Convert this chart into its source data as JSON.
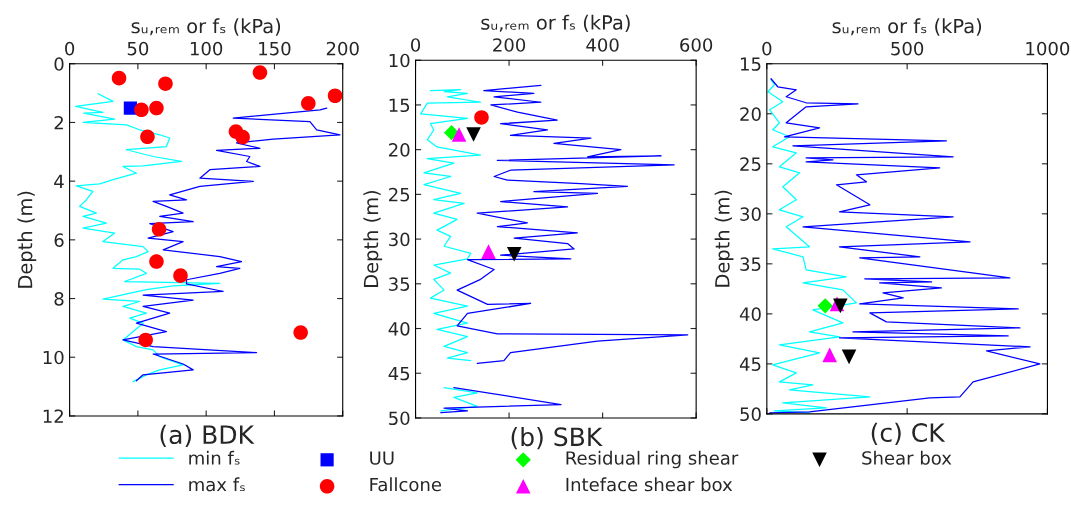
{
  "chart_data": [
    {
      "type": "line",
      "title": "(a) BDK",
      "xlabel": "sᵤ,ᵣₑₘ or fₛ (kPa)",
      "ylabel": "Depth (m)",
      "xlim": [
        0,
        200
      ],
      "xticks": [
        0,
        50,
        100,
        150,
        200
      ],
      "ylim": [
        12,
        0
      ],
      "yticks": [
        0,
        2,
        4,
        6,
        8,
        10,
        12
      ],
      "legend": "bottom",
      "series": [
        {
          "name": "min fₛ",
          "color": "#00ffff",
          "x": [
            20.8,
            31.8,
            4.4,
            24.4,
            10.3,
            33.0,
            9.8,
            41.6,
            51.3,
            66.0,
            73.3,
            70.9,
            41.6,
            61.1,
            81.9,
            53.8,
            39.1,
            48.9,
            31.8,
            22.0,
            4.9,
            17.1,
            12.2,
            7.3,
            19.6,
            9.8,
            26.9,
            9.8,
            33.0,
            24.4,
            53.8,
            57.5,
            48.9,
            39.1,
            31.8,
            51.3,
            56.2,
            40.3,
            110.0,
            75.8,
            56.2,
            24.4,
            51.3,
            39.1,
            56.2,
            44.0,
            53.8,
            39.1,
            48.9,
            61.1,
            66.0,
            83.1,
            66.0,
            56.2,
            46.5
          ],
          "values": [
            1.02,
            1.28,
            1.45,
            1.66,
            1.68,
            1.89,
            2.0,
            2.08,
            2.25,
            2.42,
            2.53,
            2.82,
            2.93,
            3.16,
            3.33,
            3.48,
            3.5,
            3.73,
            3.95,
            4.09,
            4.16,
            4.35,
            4.64,
            4.86,
            5.09,
            5.2,
            5.43,
            5.6,
            5.77,
            6.06,
            6.23,
            6.4,
            6.57,
            6.68,
            6.97,
            7.0,
            7.14,
            7.42,
            7.48,
            7.57,
            7.7,
            8.02,
            8.1,
            8.27,
            8.5,
            8.67,
            8.84,
            9.41,
            9.64,
            9.75,
            9.98,
            10.26,
            10.43,
            10.6,
            10.83
          ]
        },
        {
          "name": "max fₛ",
          "color": "#0000ff",
          "x": [
            188.3,
            183.4,
            119.8,
            176.0,
            180.9,
            198.0,
            149.1,
            122.2,
            139.4,
            107.6,
            132.0,
            129.6,
            139.4,
            102.7,
            95.4,
            134.5,
            95.4,
            73.3,
            85.6,
            61.1,
            70.9,
            83.1,
            66.0,
            90.5,
            58.7,
            75.8,
            57.5,
            83.1,
            68.5,
            110.0,
            125.9,
            107.6,
            124.7,
            110.0,
            85.6,
            85.6,
            112.5,
            53.8,
            90.5,
            53.8,
            73.3,
            48.9,
            70.9,
            39.1,
            61.1,
            136.9,
            61.1,
            83.1,
            90.5,
            53.8,
            48.9
          ],
          "values": [
            1.51,
            1.57,
            1.85,
            1.97,
            2.25,
            2.42,
            2.57,
            2.7,
            2.88,
            2.95,
            3.16,
            3.33,
            3.5,
            3.61,
            3.9,
            4.01,
            4.18,
            4.47,
            4.64,
            4.69,
            4.86,
            5.09,
            5.2,
            5.38,
            5.45,
            5.72,
            5.94,
            6.06,
            6.34,
            6.57,
            6.74,
            6.91,
            6.97,
            7.14,
            7.36,
            7.5,
            7.76,
            7.88,
            8.05,
            8.27,
            8.5,
            8.84,
            9.13,
            9.41,
            9.64,
            9.84,
            9.89,
            10.23,
            10.43,
            10.6,
            10.8
          ]
        },
        {
          "name": "UU",
          "color": "#0000ff",
          "type": "scatter",
          "marker": "square",
          "x": [
            44.5
          ],
          "values": [
            1.51
          ]
        },
        {
          "name": "Fallcone",
          "color": "#ff0000",
          "type": "scatter",
          "marker": "circle",
          "x": [
            36.2,
            70.2,
            139.4,
            174.8,
            194.4,
            52.6,
            63.6,
            57.0,
            121.8,
            126.7,
            65.5,
            63.6,
            81.2,
            169.2,
            55.7
          ],
          "values": [
            0.49,
            0.68,
            0.3,
            1.35,
            1.09,
            1.57,
            1.51,
            2.49,
            2.31,
            2.5,
            5.64,
            6.74,
            7.22,
            9.16,
            9.41
          ]
        }
      ]
    },
    {
      "type": "line",
      "title": "(b) SBK",
      "xlabel": "sᵤ,ᵣₑₘ or fₛ (kPa)",
      "ylabel": "Depth (m)",
      "xlim": [
        0,
        600
      ],
      "xticks": [
        0,
        200,
        400,
        600
      ],
      "ylim": [
        50,
        10
      ],
      "yticks": [
        10,
        15,
        20,
        25,
        30,
        35,
        40,
        45,
        50
      ],
      "legend": "bottom",
      "series": [
        {
          "name": "min fₛ",
          "color": "#00ffff",
          "x": [
            32,
            96,
            61,
            111,
            68,
            139,
            25,
            11,
            111,
            32,
            39,
            25,
            46,
            139,
            25,
            82,
            18,
            75,
            18,
            96,
            39,
            104,
            39,
            89,
            46,
            75,
            61,
            118,
            111,
            39,
            75,
            39,
            61,
            32,
            111,
            39,
            111,
            46,
            111,
            61,
            111,
            68,
            118,
            null,
            61,
            132,
            82,
            132,
            54
          ],
          "values": [
            13.4,
            13.3,
            13.5,
            13.7,
            14.1,
            14.7,
            14.8,
            16.0,
            16.5,
            17.1,
            17.8,
            18.9,
            19.7,
            20.6,
            21.0,
            21.5,
            22.6,
            23.0,
            23.9,
            24.9,
            25.6,
            26.0,
            27.1,
            27.8,
            29.0,
            29.7,
            30.8,
            31.6,
            32.2,
            32.9,
            33.8,
            34.5,
            35.7,
            36.6,
            37.5,
            38.3,
            39.4,
            40.1,
            40.9,
            42.0,
            42.7,
            43.3,
            43.6,
            null,
            46.6,
            47.2,
            47.7,
            48.7,
            49.2
          ]
        },
        {
          "name": "max fₛ",
          "color": "#0000ff",
          "x": [
            268,
            146,
            253,
            168,
            268,
            161,
            218,
            303,
            182,
            282,
            203,
            375,
            296,
            439,
            368,
            525,
            175,
            553,
            203,
            168,
            196,
            353,
            453,
            253,
            389,
            182,
            325,
            132,
            239,
            175,
            346,
            211,
            325,
            339,
            182,
            332,
            111,
            168,
            139,
            89,
            154,
            246,
            111,
            89,
            175,
            582,
            389,
            203,
            189,
            132,
            null,
            82,
            311,
            61,
            111,
            54
          ],
          "values": [
            12.8,
            13.4,
            13.7,
            14.1,
            14.7,
            15.0,
            15.8,
            16.7,
            17.1,
            17.8,
            18.4,
            18.7,
            19.3,
            20.0,
            20.8,
            20.7,
            21.2,
            21.7,
            22.3,
            23.0,
            23.4,
            23.8,
            24.1,
            24.7,
            24.9,
            25.8,
            26.4,
            27.1,
            28.2,
            28.6,
            29.3,
            29.9,
            30.5,
            31.1,
            31.8,
            32.2,
            32.3,
            33.4,
            34.5,
            35.7,
            37.3,
            37.2,
            38.3,
            39.7,
            40.6,
            40.7,
            41.4,
            42.7,
            43.6,
            43.9,
            null,
            46.6,
            48.5,
            48.9,
            49.2,
            49.4
          ]
        },
        {
          "name": "Fallcone",
          "color": "#ff0000",
          "type": "scatter",
          "marker": "circle",
          "x": [
            141
          ],
          "values": [
            16.4
          ]
        },
        {
          "name": "Residual ring shear",
          "color": "#00ff00",
          "type": "scatter",
          "marker": "diamond",
          "x": [
            77
          ],
          "values": [
            18.1
          ]
        },
        {
          "name": "Inteface shear box",
          "color": "#ff00ff",
          "type": "scatter",
          "marker": "triangle",
          "x": [
            93,
            156
          ],
          "values": [
            18.3,
            31.4
          ]
        },
        {
          "name": "Shear box",
          "color": "#000000",
          "type": "scatter",
          "marker": "triangle-down",
          "x": [
            124,
            211
          ],
          "values": [
            18.3,
            31.7
          ]
        }
      ]
    },
    {
      "type": "line",
      "title": "(c) CK",
      "xlabel": "sᵤ,ᵣₑₘ or fₛ (kPa)",
      "ylabel": "Depth (m)",
      "xlim": [
        0,
        1000
      ],
      "xticks": [
        0,
        500,
        1000
      ],
      "ylim": [
        50,
        15
      ],
      "yticks": [
        15,
        20,
        25,
        30,
        35,
        40,
        45,
        50
      ],
      "legend": "bottom",
      "series": [
        {
          "name": "min fₛ",
          "color": "#00ffff",
          "x": [
            15,
            27,
            4,
            57,
            10,
            45,
            21,
            81,
            21,
            105,
            45,
            117,
            57,
            105,
            45,
            129,
            69,
            152,
            21,
            129,
            140,
            283,
            129,
            271,
            319,
            164,
            271,
            152,
            259,
            45,
            188,
            21,
            105,
            45,
            164,
            81,
            367,
            57,
            212,
            27,
            152
          ],
          "values": [
            16.6,
            17.1,
            17.8,
            18.8,
            19.6,
            20.9,
            21.6,
            22.3,
            23.3,
            23.9,
            25.3,
            25.9,
            27.3,
            28.6,
            29.6,
            30.3,
            31.3,
            33.3,
            33.5,
            34.3,
            35.6,
            36.3,
            36.9,
            37.6,
            38.9,
            39.6,
            40.9,
            41.8,
            42.3,
            43.1,
            43.9,
            45.1,
            45.9,
            46.8,
            47.1,
            47.6,
            48.3,
            48.9,
            49.4,
            49.7,
            49.9
          ]
        },
        {
          "name": "max fₛ",
          "color": "#0000ff",
          "x": [
            15,
            39,
            105,
            69,
            140,
            325,
            140,
            69,
            188,
            63,
            640,
            93,
            664,
            140,
            236,
            140,
            616,
            319,
            355,
            248,
            367,
            259,
            664,
            129,
            724,
            259,
            545,
            331,
            866,
            349,
            587,
            402,
            622,
            414,
            486,
            331,
            896,
            367,
            426,
            902,
            307,
            860,
            259,
            938,
            783,
            973,
            735,
            688,
            581,
            152,
            10
          ],
          "values": [
            16.5,
            17.3,
            17.6,
            18.3,
            18.9,
            19.0,
            19.3,
            20.9,
            21.4,
            22.3,
            22.7,
            23.2,
            24.3,
            24.4,
            24.6,
            24.8,
            25.4,
            26.1,
            26.8,
            27.1,
            29.1,
            29.8,
            30.3,
            31.3,
            32.8,
            33.3,
            34.3,
            34.4,
            36.4,
            36.5,
            36.8,
            36.9,
            37.4,
            37.9,
            38.4,
            39.0,
            39.5,
            39.9,
            40.8,
            41.4,
            41.8,
            42.2,
            42.4,
            43.3,
            43.7,
            45.0,
            46.8,
            48.3,
            48.4,
            49.8,
            49.9
          ]
        },
        {
          "name": "Residual ring shear",
          "color": "#00ff00",
          "type": "scatter",
          "marker": "diamond",
          "x": [
            208
          ],
          "values": [
            39.2
          ]
        },
        {
          "name": "Inteface shear box",
          "color": "#ff00ff",
          "type": "scatter",
          "marker": "triangle",
          "x": [
            250,
            224
          ],
          "values": [
            39.0,
            44.1
          ]
        },
        {
          "name": "Shear box",
          "color": "#000000",
          "type": "scatter",
          "marker": "triangle-down",
          "x": [
            262,
            293
          ],
          "values": [
            39.2,
            44.3
          ]
        }
      ]
    }
  ]
}
